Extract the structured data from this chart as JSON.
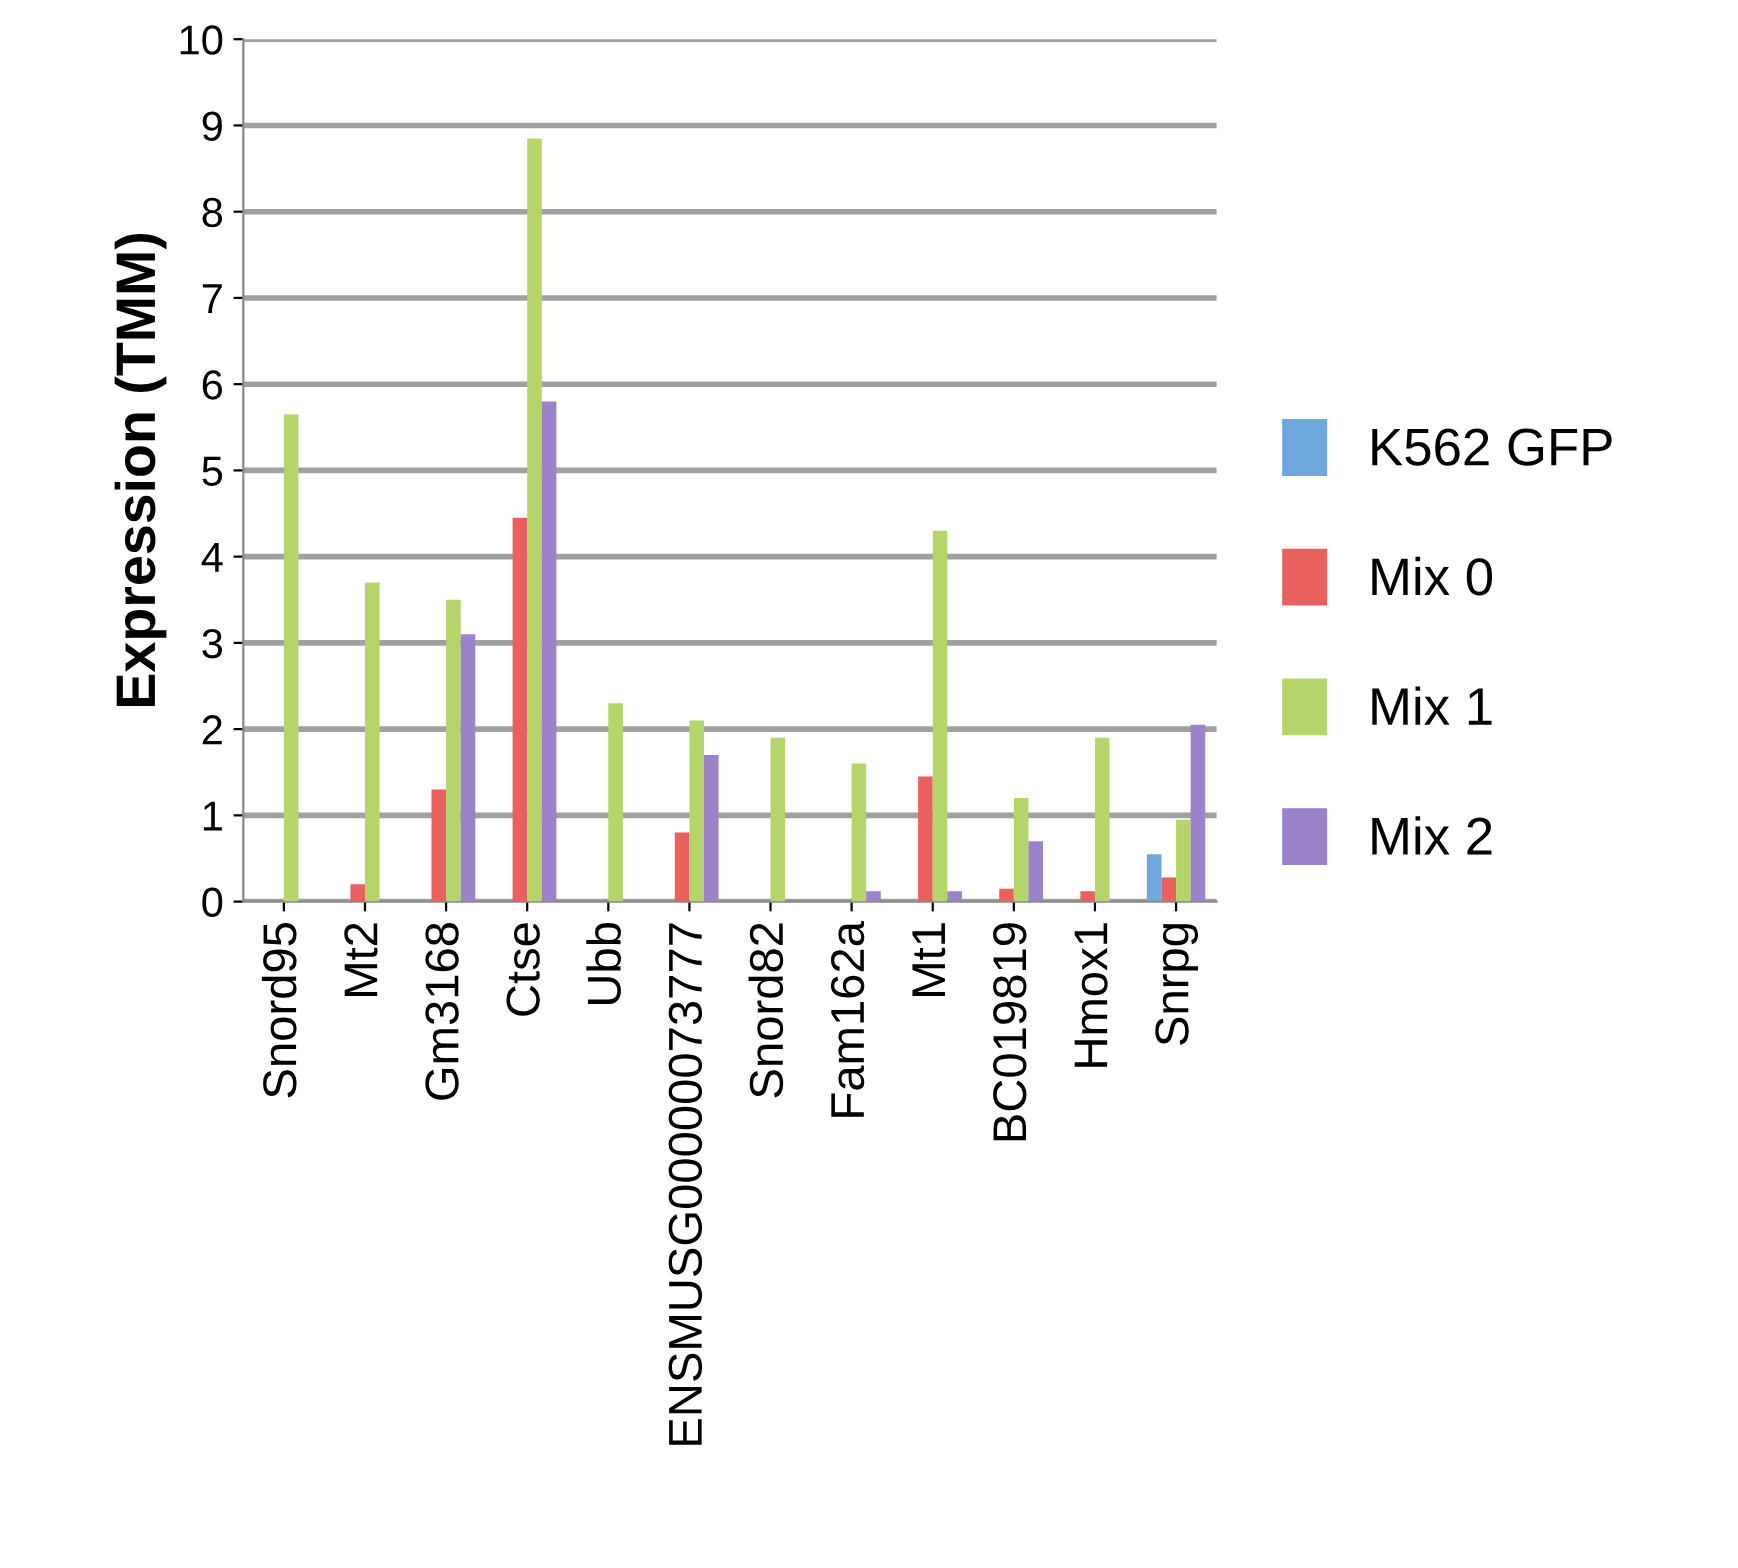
{
  "chart_data": {
    "type": "bar",
    "ylabel": "Expression (TMM)",
    "categories": [
      "Snord95",
      "Mt2",
      "Gm3168",
      "Ctse",
      "Ubb",
      "ENSMUSG00000073777",
      "Snord82",
      "Fam162a",
      "Mt1",
      "BC019819",
      "Hmox1",
      "Snrpg"
    ],
    "series": [
      {
        "name": "K562 GFP",
        "color": "#6fa8dc",
        "values": [
          null,
          null,
          null,
          null,
          null,
          null,
          null,
          null,
          null,
          null,
          null,
          0.55
        ]
      },
      {
        "name": "Mix 0",
        "color": "#e8615f",
        "values": [
          null,
          0.2,
          1.3,
          4.45,
          null,
          0.8,
          null,
          null,
          1.45,
          0.15,
          0.12,
          0.28
        ]
      },
      {
        "name": "Mix 1",
        "color": "#b5d56a",
        "values": [
          5.65,
          3.7,
          3.5,
          8.85,
          2.3,
          2.1,
          1.9,
          1.6,
          4.3,
          1.2,
          1.9,
          0.95
        ]
      },
      {
        "name": "Mix 2",
        "color": "#9b82c9",
        "values": [
          null,
          null,
          3.1,
          5.8,
          null,
          1.7,
          null,
          0.12,
          0.12,
          0.7,
          null,
          2.05
        ]
      }
    ],
    "ylim": [
      0,
      10
    ],
    "yticks": [
      0,
      1,
      2,
      3,
      4,
      5,
      6,
      7,
      8,
      9,
      10
    ],
    "grid": "y",
    "legend": "right"
  }
}
